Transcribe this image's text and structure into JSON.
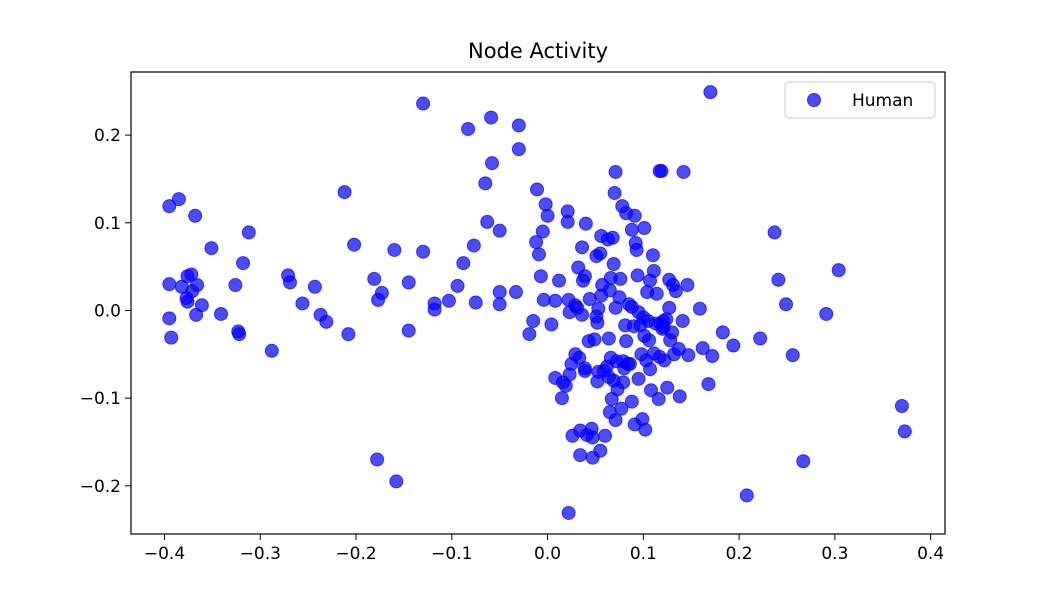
{
  "chart_data": {
    "type": "scatter",
    "title": "Node Activity",
    "xlabel": "",
    "ylabel": "",
    "xlim": [
      -0.435,
      0.415
    ],
    "ylim": [
      -0.255,
      0.272
    ],
    "xticks": [
      -0.4,
      -0.3,
      -0.2,
      -0.1,
      0.0,
      0.1,
      0.2,
      0.3,
      0.4
    ],
    "xtick_labels": [
      "−0.4",
      "−0.3",
      "−0.2",
      "−0.1",
      "0.0",
      "0.1",
      "0.2",
      "0.3",
      "0.4"
    ],
    "yticks": [
      -0.2,
      -0.1,
      0.0,
      0.1,
      0.2
    ],
    "ytick_labels": [
      "−0.2",
      "−0.1",
      "0.0",
      "0.1",
      "0.2"
    ],
    "grid": false,
    "legend": {
      "position": "top-right"
    },
    "series": [
      {
        "name": "Human",
        "color": "#0000ff",
        "points": [
          [
            -0.395,
            0.119
          ],
          [
            -0.385,
            0.127
          ],
          [
            -0.368,
            0.108
          ],
          [
            -0.395,
            0.03
          ],
          [
            -0.382,
            0.027
          ],
          [
            -0.372,
            0.041
          ],
          [
            -0.376,
            0.039
          ],
          [
            -0.371,
            0.022
          ],
          [
            -0.366,
            0.029
          ],
          [
            -0.377,
            0.014
          ],
          [
            -0.376,
            0.01
          ],
          [
            -0.367,
            -0.005
          ],
          [
            -0.361,
            0.006
          ],
          [
            -0.395,
            -0.009
          ],
          [
            -0.393,
            -0.031
          ],
          [
            -0.351,
            0.071
          ],
          [
            -0.341,
            -0.004
          ],
          [
            -0.326,
            0.029
          ],
          [
            -0.323,
            -0.024
          ],
          [
            -0.322,
            -0.027
          ],
          [
            -0.318,
            0.054
          ],
          [
            -0.312,
            0.089
          ],
          [
            -0.288,
            -0.046
          ],
          [
            -0.271,
            0.04
          ],
          [
            -0.269,
            0.032
          ],
          [
            -0.256,
            0.008
          ],
          [
            -0.243,
            0.027
          ],
          [
            -0.237,
            -0.005
          ],
          [
            -0.231,
            -0.013
          ],
          [
            -0.212,
            0.135
          ],
          [
            -0.208,
            -0.027
          ],
          [
            -0.202,
            0.075
          ],
          [
            -0.181,
            0.036
          ],
          [
            -0.177,
            0.012
          ],
          [
            -0.173,
            0.02
          ],
          [
            -0.178,
            -0.17
          ],
          [
            -0.16,
            0.069
          ],
          [
            -0.158,
            -0.195
          ],
          [
            -0.145,
            0.032
          ],
          [
            -0.145,
            -0.023
          ],
          [
            -0.13,
            0.236
          ],
          [
            -0.13,
            0.067
          ],
          [
            -0.118,
            0.008
          ],
          [
            -0.118,
            0.001
          ],
          [
            -0.103,
            0.011
          ],
          [
            -0.094,
            0.028
          ],
          [
            -0.088,
            0.054
          ],
          [
            -0.083,
            0.207
          ],
          [
            -0.077,
            0.074
          ],
          [
            -0.075,
            0.009
          ],
          [
            -0.065,
            0.145
          ],
          [
            -0.063,
            0.101
          ],
          [
            -0.059,
            0.22
          ],
          [
            -0.058,
            0.168
          ],
          [
            -0.05,
            0.091
          ],
          [
            -0.05,
            0.021
          ],
          [
            -0.05,
            0.007
          ],
          [
            -0.033,
            0.021
          ],
          [
            -0.03,
            0.211
          ],
          [
            -0.03,
            0.184
          ],
          [
            -0.019,
            -0.027
          ],
          [
            -0.015,
            -0.012
          ],
          [
            -0.012,
            0.078
          ],
          [
            -0.011,
            0.138
          ],
          [
            -0.009,
            0.064
          ],
          [
            -0.007,
            0.039
          ],
          [
            -0.005,
            0.09
          ],
          [
            -0.004,
            0.012
          ],
          [
            -0.002,
            0.121
          ],
          [
            0.0,
            0.108
          ],
          [
            0.004,
            -0.016
          ],
          [
            0.008,
            -0.077
          ],
          [
            0.008,
            0.011
          ],
          [
            0.012,
            0.034
          ],
          [
            0.015,
            -0.1
          ],
          [
            0.016,
            -0.082
          ],
          [
            0.019,
            -0.086
          ],
          [
            0.021,
            0.113
          ],
          [
            0.021,
            0.101
          ],
          [
            0.022,
            0.012
          ],
          [
            0.022,
            -0.231
          ],
          [
            0.023,
            -0.002
          ],
          [
            0.023,
            -0.073
          ],
          [
            0.025,
            -0.061
          ],
          [
            0.026,
            -0.143
          ],
          [
            0.029,
            -0.05
          ],
          [
            0.029,
            0.006
          ],
          [
            0.031,
            0.003
          ],
          [
            0.032,
            0.049
          ],
          [
            0.033,
            -0.054
          ],
          [
            0.034,
            -0.165
          ],
          [
            0.034,
            -0.137
          ],
          [
            0.036,
            0.072
          ],
          [
            0.036,
            -0.005
          ],
          [
            0.037,
            0.034
          ],
          [
            0.039,
            -0.066
          ],
          [
            0.039,
            -0.069
          ],
          [
            0.039,
            0.039
          ],
          [
            0.04,
            0.099
          ],
          [
            0.041,
            -0.142
          ],
          [
            0.043,
            -0.035
          ],
          [
            0.044,
            0.013
          ],
          [
            0.046,
            -0.135
          ],
          [
            0.047,
            -0.145
          ],
          [
            0.047,
            -0.168
          ],
          [
            0.049,
            -0.033
          ],
          [
            0.051,
            -0.007
          ],
          [
            0.051,
            0.062
          ],
          [
            0.052,
            -0.014
          ],
          [
            0.052,
            -0.081
          ],
          [
            0.053,
            -0.07
          ],
          [
            0.053,
            0.002
          ],
          [
            0.055,
            -0.16
          ],
          [
            0.055,
            0.065
          ],
          [
            0.056,
            0.017
          ],
          [
            0.056,
            0.085
          ],
          [
            0.057,
            0.029
          ],
          [
            0.059,
            -0.069
          ],
          [
            0.06,
            -0.143
          ],
          [
            0.062,
            -0.064
          ],
          [
            0.063,
            0.081
          ],
          [
            0.064,
            -0.076
          ],
          [
            0.064,
            -0.032
          ],
          [
            0.065,
            0.023
          ],
          [
            0.065,
            -0.116
          ],
          [
            0.066,
            -0.054
          ],
          [
            0.066,
            0.037
          ],
          [
            0.067,
            -0.101
          ],
          [
            0.068,
            0.083
          ],
          [
            0.069,
            0.053
          ],
          [
            0.069,
            -0.08
          ],
          [
            0.07,
            0.134
          ],
          [
            0.071,
            -0.125
          ],
          [
            0.071,
            0.158
          ],
          [
            0.071,
            0.003
          ],
          [
            0.072,
            -0.058
          ],
          [
            0.073,
            -0.09
          ],
          [
            0.075,
            0.015
          ],
          [
            0.076,
            0.036
          ],
          [
            0.077,
            -0.112
          ],
          [
            0.078,
            0.119
          ],
          [
            0.079,
            -0.058
          ],
          [
            0.079,
            -0.082
          ],
          [
            0.08,
            -0.066
          ],
          [
            0.081,
            -0.017
          ],
          [
            0.082,
            0.111
          ],
          [
            0.082,
            -0.035
          ],
          [
            0.084,
            -0.061
          ],
          [
            0.085,
            0.007
          ],
          [
            0.086,
            -0.061
          ],
          [
            0.088,
            0.004
          ],
          [
            0.088,
            -0.104
          ],
          [
            0.088,
            0.092
          ],
          [
            0.09,
            -0.018
          ],
          [
            0.091,
            0.108
          ],
          [
            0.091,
            -0.13
          ],
          [
            0.092,
            0.077
          ],
          [
            0.093,
            0.069
          ],
          [
            0.094,
            0.04
          ],
          [
            0.095,
            -0.002
          ],
          [
            0.095,
            -0.078
          ],
          [
            0.097,
            -0.017
          ],
          [
            0.098,
            -0.05
          ],
          [
            0.099,
            -0.124
          ],
          [
            0.1,
            -0.008
          ],
          [
            0.101,
            -0.029
          ],
          [
            0.101,
            0.094
          ],
          [
            0.102,
            -0.136
          ],
          [
            0.103,
            -0.057
          ],
          [
            0.104,
            0.021
          ],
          [
            0.105,
            -0.012
          ],
          [
            0.106,
            -0.034
          ],
          [
            0.107,
            0.034
          ],
          [
            0.107,
            -0.067
          ],
          [
            0.108,
            -0.091
          ],
          [
            0.11,
            0.063
          ],
          [
            0.111,
            -0.049
          ],
          [
            0.111,
            0.045
          ],
          [
            0.113,
            -0.015
          ],
          [
            0.114,
            0.019
          ],
          [
            0.116,
            -0.101
          ],
          [
            0.117,
            0.159
          ],
          [
            0.117,
            -0.053
          ],
          [
            0.118,
            -0.015
          ],
          [
            0.119,
            0.159
          ],
          [
            0.12,
            -0.021
          ],
          [
            0.121,
            -0.012
          ],
          [
            0.121,
            -0.019
          ],
          [
            0.122,
            -0.057
          ],
          [
            0.124,
            -0.01
          ],
          [
            0.125,
            -0.088
          ],
          [
            0.127,
            0.035
          ],
          [
            0.127,
            0.003
          ],
          [
            0.128,
            -0.034
          ],
          [
            0.13,
            -0.025
          ],
          [
            0.131,
            0.029
          ],
          [
            0.132,
            -0.05
          ],
          [
            0.134,
            0.022
          ],
          [
            0.137,
            -0.044
          ],
          [
            0.138,
            -0.098
          ],
          [
            0.141,
            -0.012
          ],
          [
            0.142,
            0.158
          ],
          [
            0.146,
            0.029
          ],
          [
            0.147,
            -0.051
          ],
          [
            0.159,
            0.002
          ],
          [
            0.162,
            -0.043
          ],
          [
            0.168,
            -0.084
          ],
          [
            0.17,
            0.249
          ],
          [
            0.172,
            -0.052
          ],
          [
            0.183,
            -0.025
          ],
          [
            0.194,
            -0.04
          ],
          [
            0.208,
            -0.211
          ],
          [
            0.222,
            -0.032
          ],
          [
            0.237,
            0.089
          ],
          [
            0.241,
            0.035
          ],
          [
            0.249,
            0.007
          ],
          [
            0.256,
            -0.051
          ],
          [
            0.267,
            -0.172
          ],
          [
            0.291,
            -0.004
          ],
          [
            0.304,
            0.046
          ],
          [
            0.37,
            -0.109
          ],
          [
            0.373,
            -0.138
          ]
        ]
      }
    ]
  }
}
